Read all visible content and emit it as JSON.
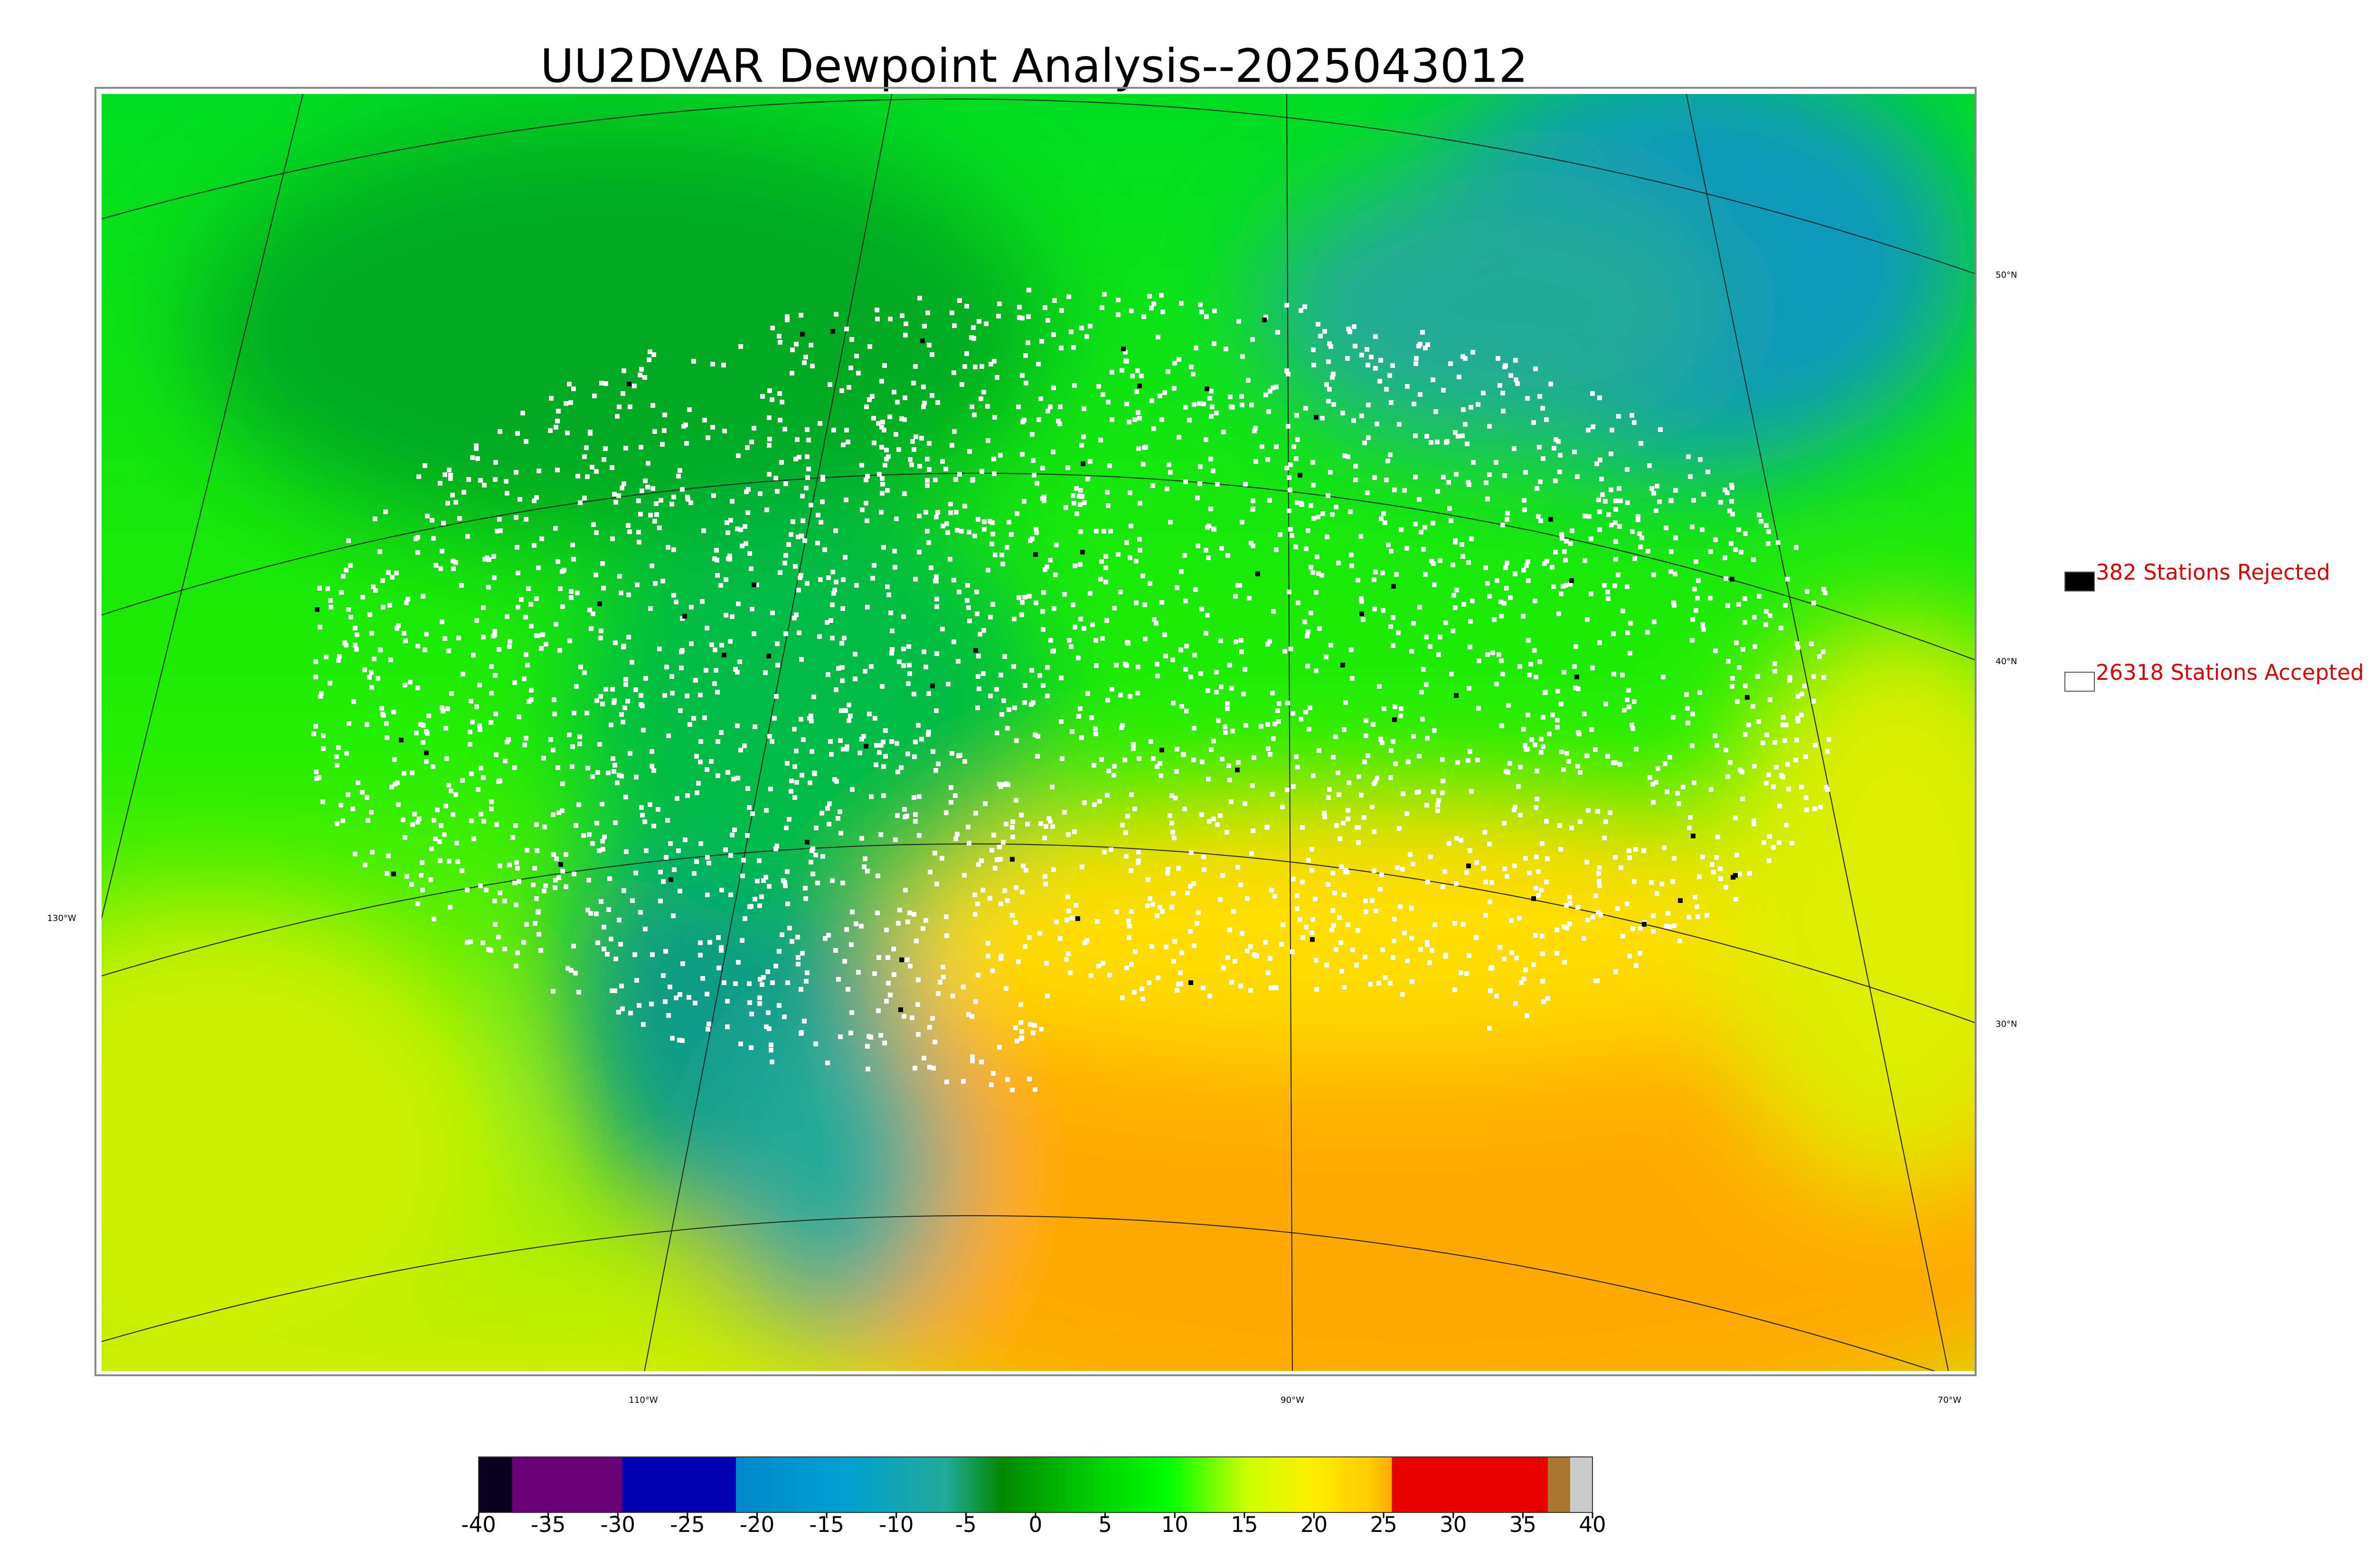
{
  "title": "UU2DVAR Dewpoint Analysis--2025043012",
  "legend": [
    {
      "label": "382 Stations Rejected"
    },
    {
      "label": "26318 Stations Accepted"
    }
  ],
  "graticule": {
    "lat_labels": [
      "50°N",
      "40°N",
      "30°N"
    ],
    "lon_labels": [
      "130°W",
      "110°W",
      "90°W",
      "70°W"
    ]
  },
  "colorbar": {
    "range": [
      -40,
      40
    ],
    "ticks": [
      -40,
      -35,
      -30,
      -25,
      -20,
      -15,
      -10,
      -5,
      0,
      5,
      10,
      15,
      20,
      25,
      30,
      35,
      40
    ]
  }
}
